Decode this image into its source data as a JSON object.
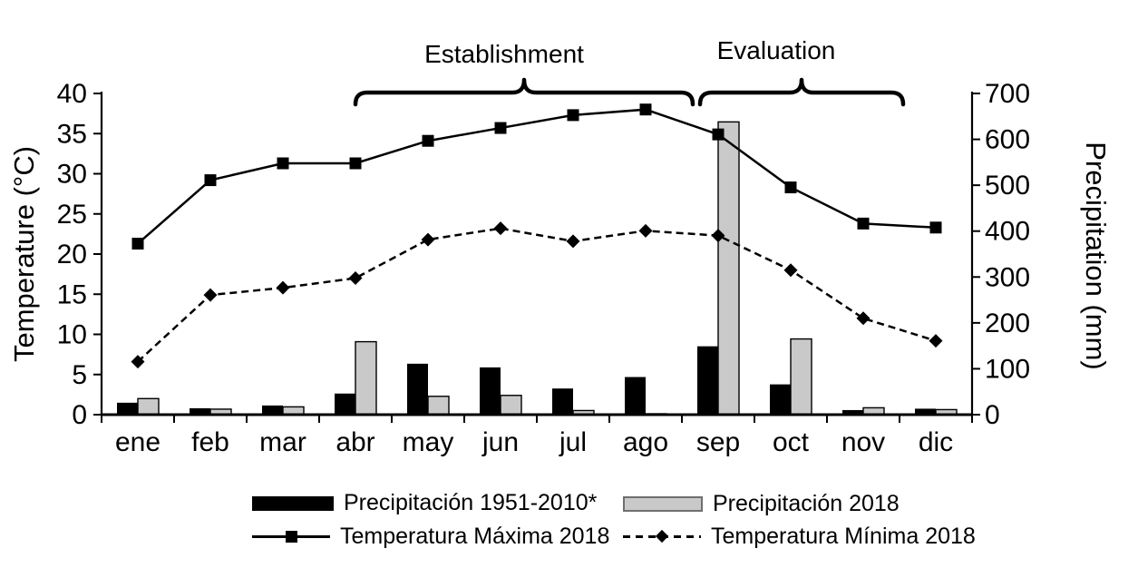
{
  "chart_data": {
    "type": "bar",
    "subtype": "combo-bar-line-dual-axis",
    "categories": [
      "ene",
      "feb",
      "mar",
      "abr",
      "may",
      "jun",
      "jul",
      "ago",
      "sep",
      "oct",
      "nov",
      "dic"
    ],
    "bar_series": [
      {
        "name": "Precipitación 1951-2010*",
        "axis": "right",
        "color": "#000000",
        "values": [
          26,
          14,
          20,
          46,
          111,
          103,
          57,
          82,
          149,
          66,
          10,
          13
        ]
      },
      {
        "name": "Precipitación 2018",
        "axis": "right",
        "color": "#c9c9c9",
        "values": [
          35,
          12,
          17,
          159,
          40,
          42,
          9,
          2,
          638,
          165,
          15,
          11
        ]
      }
    ],
    "line_series": [
      {
        "name": "Temperatura Máxima 2018",
        "axis": "left",
        "style": "solid",
        "marker": "square",
        "color": "#000000",
        "values": [
          21.3,
          29.2,
          31.3,
          31.3,
          34.1,
          35.7,
          37.3,
          38.0,
          34.9,
          28.3,
          23.8,
          23.3
        ]
      },
      {
        "name": "Temperatura Mínima 2018",
        "axis": "left",
        "style": "dashed",
        "marker": "diamond",
        "color": "#000000",
        "values": [
          6.6,
          14.9,
          15.8,
          17.0,
          21.8,
          23.2,
          21.6,
          22.9,
          22.3,
          18.0,
          12.0,
          9.2
        ]
      }
    ],
    "left_axis": {
      "title": "Temperature (°C)",
      "min": 0,
      "max": 40,
      "step": 5,
      "ticks": [
        "0",
        "5",
        "10",
        "15",
        "20",
        "25",
        "30",
        "35",
        "40"
      ]
    },
    "right_axis": {
      "title": "Precipitation (mm)",
      "min": 0,
      "max": 700,
      "step": 100,
      "ticks": [
        "0",
        "100",
        "200",
        "300",
        "400",
        "500",
        "600",
        "700"
      ]
    },
    "annotations": [
      {
        "label": "Establishment",
        "start_frac": 3.5,
        "end_frac": 8.15,
        "label_frac": 5.55
      },
      {
        "label": "Evaluation",
        "start_frac": 8.25,
        "end_frac": 11.05,
        "label_frac": 9.3
      }
    ],
    "grid": false,
    "legend_position": "bottom",
    "background": "#ffffff"
  },
  "legend": {
    "items": [
      {
        "label": "Precipitación 1951-2010*",
        "swatch": "black-bar"
      },
      {
        "label": "Precipitación 2018",
        "swatch": "gray-bar"
      },
      {
        "label": "Temperatura Máxima 2018",
        "swatch": "solid-line-square"
      },
      {
        "label": "Temperatura Mínima 2018",
        "swatch": "dashed-line-diamond"
      }
    ]
  }
}
